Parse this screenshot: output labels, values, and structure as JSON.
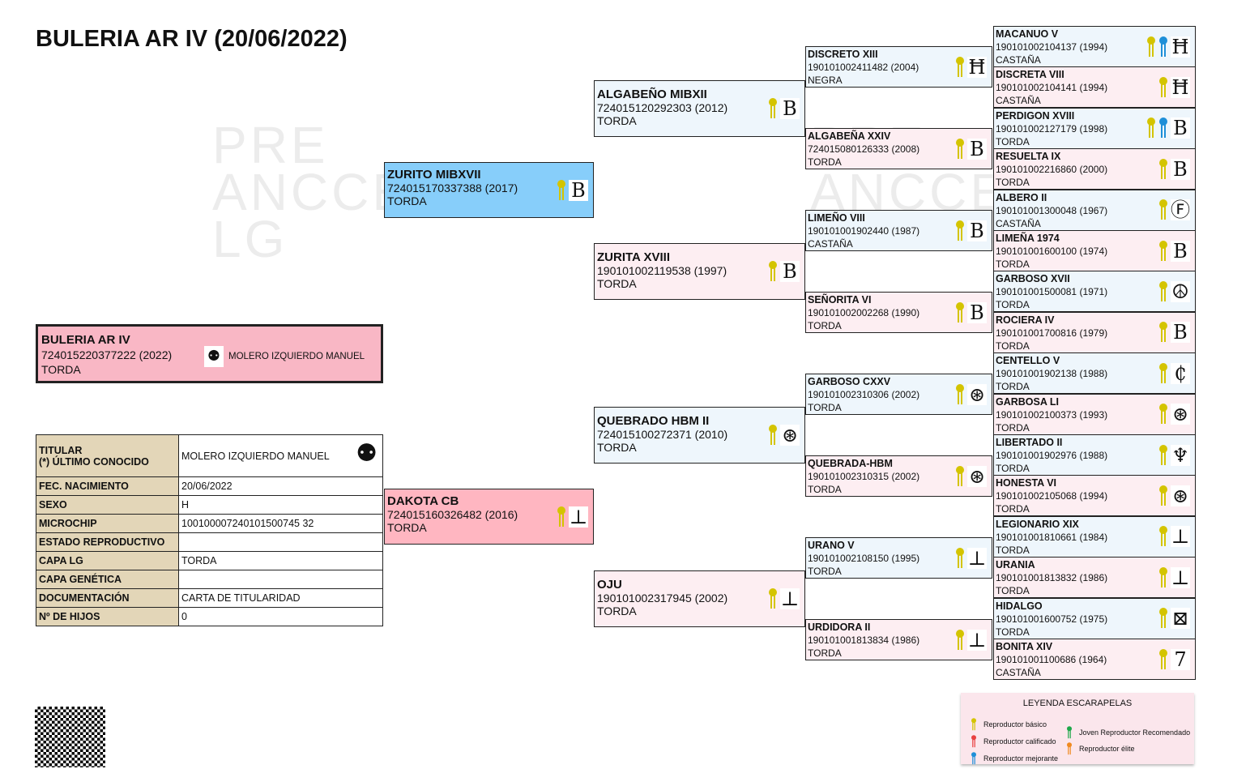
{
  "title": "BULERIA AR IV (20/06/2022)",
  "watermark": "PRE ANCCE LG",
  "colors": {
    "basic": "#d4c400",
    "calificado": "#e84040",
    "mejorante": "#1e8fd8",
    "joven": "#1ea84a",
    "elite": "#f08a20"
  },
  "subject": {
    "name": "BULERIA AR IV",
    "reg": "724015220377222 (2022)",
    "coat": "TORDA",
    "owner": "MOLERO IZQUIERDO MANUEL",
    "brand": "⚉"
  },
  "gen1": [
    {
      "name": "ZURITO MIBXVII",
      "reg": "724015170337388 (2017)",
      "coat": "TORDA",
      "ribbons": [
        "basic"
      ],
      "brand": "B"
    },
    {
      "name": "DAKOTA CB",
      "reg": "724015160326482 (2016)",
      "coat": "TORDA",
      "ribbons": [
        "basic"
      ],
      "brand": "⊥"
    }
  ],
  "gen2": [
    {
      "name": "ALGABEÑO MIBXII",
      "reg": "724015120292303 (2012)",
      "coat": "TORDA",
      "ribbons": [
        "basic"
      ],
      "brand": "B"
    },
    {
      "name": "ZURITA XVIII",
      "reg": "190101002119538 (1997)",
      "coat": "TORDA",
      "ribbons": [
        "basic"
      ],
      "brand": "B"
    },
    {
      "name": "QUEBRADO HBM II",
      "reg": "724015100272371 (2010)",
      "coat": "TORDA",
      "ribbons": [
        "basic"
      ],
      "brand": "⊛"
    },
    {
      "name": "OJU",
      "reg": "190101002317945 (2002)",
      "coat": "TORDA",
      "ribbons": [
        "basic"
      ],
      "brand": "⊥"
    }
  ],
  "gen3": [
    {
      "name": "DISCRETO XIII",
      "reg": "190101002411482 (2004)",
      "coat": "NEGRA",
      "ribbons": [
        "basic"
      ],
      "brand": "Ħ"
    },
    {
      "name": "ALGABEÑA XXIV",
      "reg": "724015080126333 (2008)",
      "coat": "TORDA",
      "ribbons": [
        "basic"
      ],
      "brand": "B"
    },
    {
      "name": "LIMEÑO VIII",
      "reg": "190101001902440 (1987)",
      "coat": "CASTAÑA",
      "ribbons": [
        "basic"
      ],
      "brand": "B"
    },
    {
      "name": "SEÑORITA VI",
      "reg": "190101002002268 (1990)",
      "coat": "TORDA",
      "ribbons": [
        "basic"
      ],
      "brand": "B"
    },
    {
      "name": "GARBOSO CXXV",
      "reg": "190101002310306 (2002)",
      "coat": "TORDA",
      "ribbons": [
        "basic"
      ],
      "brand": "⊛"
    },
    {
      "name": "QUEBRADA-HBM",
      "reg": "190101002310315 (2002)",
      "coat": "TORDA",
      "ribbons": [
        "basic"
      ],
      "brand": "⊛"
    },
    {
      "name": "URANO V",
      "reg": "190101002108150 (1995)",
      "coat": "TORDA",
      "ribbons": [
        "basic"
      ],
      "brand": "⊥"
    },
    {
      "name": "URDIDORA II",
      "reg": "190101001813834 (1986)",
      "coat": "TORDA",
      "ribbons": [
        "basic"
      ],
      "brand": "⊥"
    }
  ],
  "gen4": [
    {
      "name": "MACANUO V",
      "reg": "190101002104137 (1994)",
      "coat": "CASTAÑA",
      "ribbons": [
        "basic",
        "mejorante"
      ],
      "brand": "Ħ"
    },
    {
      "name": "DISCRETA VIII",
      "reg": "190101002104141 (1994)",
      "coat": "CASTAÑA",
      "ribbons": [
        "basic"
      ],
      "brand": "Ħ"
    },
    {
      "name": "PERDIGON XVIII",
      "reg": "190101002127179 (1998)",
      "coat": "TORDA",
      "ribbons": [
        "basic",
        "mejorante"
      ],
      "brand": "B"
    },
    {
      "name": "RESUELTA IX",
      "reg": "190101002216860 (2000)",
      "coat": "TORDA",
      "ribbons": [
        "basic"
      ],
      "brand": "B"
    },
    {
      "name": "ALBERO II",
      "reg": "190101001300048 (1967)",
      "coat": "CASTAÑA",
      "ribbons": [
        "basic"
      ],
      "brand": "Ⓕ"
    },
    {
      "name": "LIMEÑA 1974",
      "reg": "190101001600100 (1974)",
      "coat": "TORDA",
      "ribbons": [
        "basic"
      ],
      "brand": "B"
    },
    {
      "name": "GARBOSO XVII",
      "reg": "190101001500081 (1971)",
      "coat": "TORDA",
      "ribbons": [
        "basic"
      ],
      "brand": "☮"
    },
    {
      "name": "ROCIERA IV",
      "reg": "190101001700816 (1979)",
      "coat": "TORDA",
      "ribbons": [
        "basic"
      ],
      "brand": "B"
    },
    {
      "name": "CENTELLO V",
      "reg": "190101001902138 (1988)",
      "coat": "TORDA",
      "ribbons": [
        "basic"
      ],
      "brand": "₵"
    },
    {
      "name": "GARBOSA LI",
      "reg": "190101002100373 (1993)",
      "coat": "TORDA",
      "ribbons": [
        "basic"
      ],
      "brand": "⊛"
    },
    {
      "name": "LIBERTADO II",
      "reg": "190101001902976 (1988)",
      "coat": "TORDA",
      "ribbons": [
        "basic"
      ],
      "brand": "♆"
    },
    {
      "name": "HONESTA VI",
      "reg": "190101002105068 (1994)",
      "coat": "TORDA",
      "ribbons": [
        "basic"
      ],
      "brand": "⊛"
    },
    {
      "name": "LEGIONARIO XIX",
      "reg": "190101001810661 (1984)",
      "coat": "TORDA",
      "ribbons": [
        "basic"
      ],
      "brand": "⊥"
    },
    {
      "name": "URANIA",
      "reg": "190101001813832 (1986)",
      "coat": "TORDA",
      "ribbons": [
        "basic"
      ],
      "brand": "⊥"
    },
    {
      "name": "HIDALGO",
      "reg": "190101001600752 (1975)",
      "coat": "TORDA",
      "ribbons": [
        "basic"
      ],
      "brand": "⊠"
    },
    {
      "name": "BONITA XIV",
      "reg": "190101001100686 (1964)",
      "coat": "CASTAÑA",
      "ribbons": [
        "basic"
      ],
      "brand": "7"
    }
  ],
  "info": [
    {
      "k": "TITULAR\n(*) ÚLTIMO CONOCIDO",
      "v": "MOLERO IZQUIERDO MANUEL"
    },
    {
      "k": "FEC. NACIMIENTO",
      "v": "20/06/2022"
    },
    {
      "k": "SEXO",
      "v": "H"
    },
    {
      "k": "MICROCHIP",
      "v": "100100007240101500745 32"
    },
    {
      "k": "ESTADO REPRODUCTIVO",
      "v": ""
    },
    {
      "k": "CAPA LG",
      "v": "TORDA"
    },
    {
      "k": "CAPA GENÉTICA",
      "v": ""
    },
    {
      "k": "DOCUMENTACIÓN",
      "v": "CARTA DE TITULARIDAD"
    },
    {
      "k": "Nº DE HIJOS",
      "v": "0"
    }
  ],
  "legend": {
    "title": "LEYENDA ESCARAPELAS",
    "items": [
      {
        "key": "basic",
        "label": "Reproductor básico"
      },
      {
        "key": "calificado",
        "label": "Reproductor calificado"
      },
      {
        "key": "mejorante",
        "label": "Reproductor mejorante"
      },
      {
        "key": "joven",
        "label": "Joven Reproductor Recomendado"
      },
      {
        "key": "elite",
        "label": "Reproductor élite"
      }
    ]
  }
}
